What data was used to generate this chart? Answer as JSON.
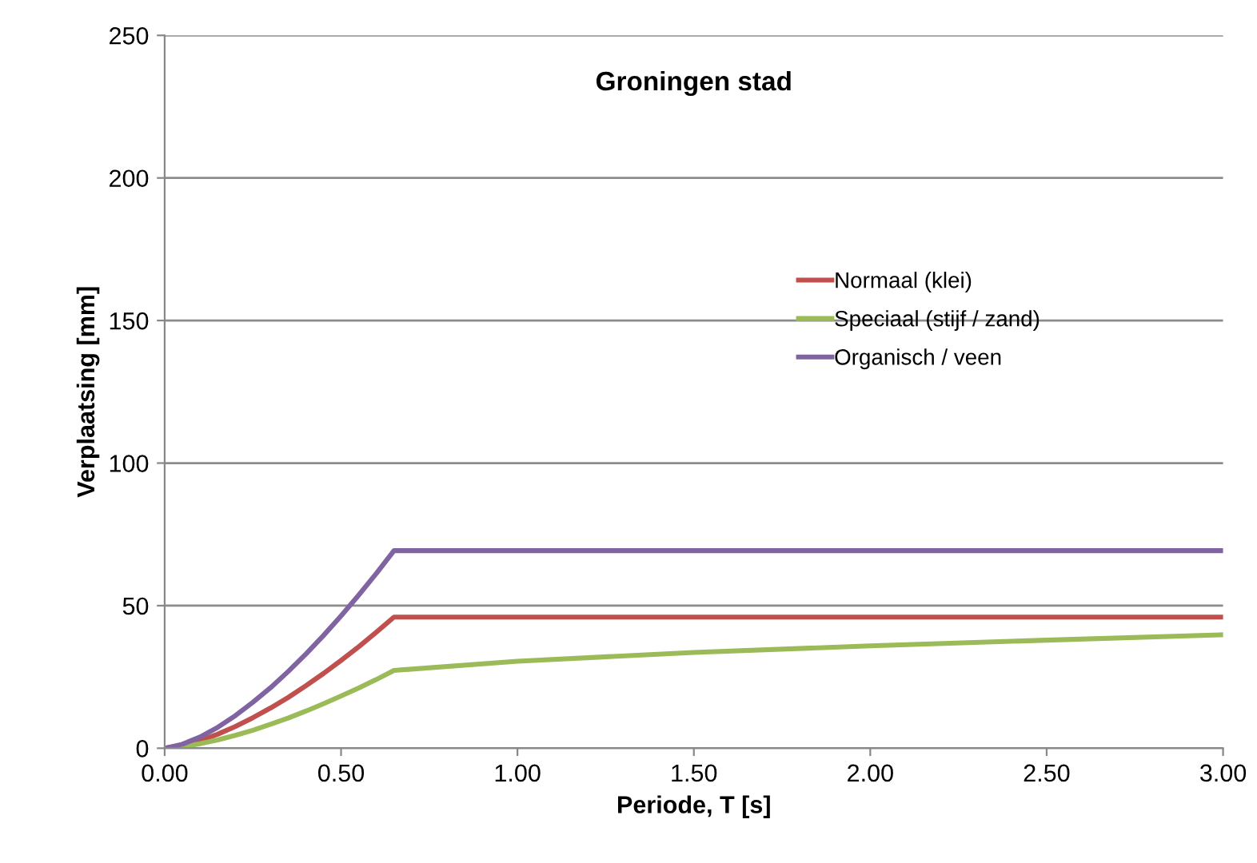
{
  "chart_data": {
    "type": "line",
    "title": "Groningen stad",
    "xlabel": "Periode, T [s]",
    "ylabel": "Verplaatsing [mm]",
    "xlim": [
      0,
      3
    ],
    "xticks": [
      {
        "value": 0,
        "label": "0.00"
      },
      {
        "value": 0.5,
        "label": "0.50"
      },
      {
        "value": 1,
        "label": "1.00"
      },
      {
        "value": 1.5,
        "label": "1.50"
      },
      {
        "value": 2,
        "label": "2.00"
      },
      {
        "value": 2.5,
        "label": "2.50"
      },
      {
        "value": 3,
        "label": "3.00"
      }
    ],
    "ylim": [
      0,
      250
    ],
    "yticks": [
      0,
      50,
      100,
      150,
      200,
      250
    ],
    "grid": "y",
    "legend": "right",
    "marker": "none",
    "line_style": "solid",
    "series": [
      {
        "name": "Normaal (klei)",
        "color": "#c0504d",
        "x": [
          0,
          0.05,
          0.1,
          0.15,
          0.2,
          0.25,
          0.3,
          0.35,
          0.4,
          0.45,
          0.5,
          0.55,
          0.6,
          0.65,
          1.0,
          1.5,
          2.0,
          2.5,
          3.0
        ],
        "values": [
          0,
          0.9,
          2.6,
          4.9,
          7.6,
          10.7,
          14.1,
          17.8,
          21.9,
          26.2,
          30.8,
          35.6,
          40.7,
          46,
          46,
          46,
          46,
          46,
          46
        ]
      },
      {
        "name": "Speciaal (stijf / zand)",
        "color": "#9bbb59",
        "x": [
          0,
          0.05,
          0.1,
          0.15,
          0.2,
          0.25,
          0.3,
          0.35,
          0.4,
          0.45,
          0.5,
          0.55,
          0.6,
          0.65,
          1.0,
          1.5,
          2.0,
          2.5,
          3.0
        ],
        "values": [
          0,
          0.5,
          1.6,
          2.9,
          4.5,
          6.3,
          8.4,
          10.6,
          13.0,
          15.6,
          18.3,
          21.1,
          24.1,
          27.3,
          30.5,
          33.6,
          35.9,
          37.9,
          39.8
        ]
      },
      {
        "name": "Organisch / veen",
        "color": "#8064a2",
        "x": [
          0,
          0.05,
          0.1,
          0.15,
          0.2,
          0.25,
          0.3,
          0.35,
          0.4,
          0.45,
          0.5,
          0.55,
          0.6,
          0.65,
          1.0,
          1.5,
          2.0,
          2.5,
          3.0
        ],
        "values": [
          0,
          1.4,
          3.9,
          7.3,
          11.4,
          16.1,
          21.2,
          26.9,
          33.0,
          39.5,
          46.4,
          53.7,
          61.3,
          69.3,
          69.3,
          69.3,
          69.3,
          69.3,
          69.3
        ]
      }
    ]
  }
}
